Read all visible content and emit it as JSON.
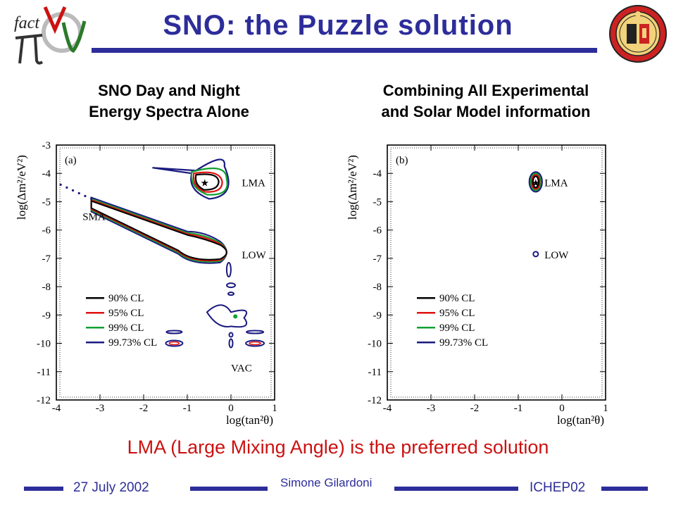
{
  "slide": {
    "title": "SNO: the Puzzle solution",
    "logo_left": {
      "icon": "factnunu-logo",
      "text": "fact"
    },
    "logo_right": {
      "icon": "university-geneva-seal"
    },
    "conclusion": "LMA (Large Mixing Angle) is the preferred solution",
    "footer": {
      "date": "27 July 2002",
      "author": "Simone Gilardoni",
      "conference": "ICHEP02"
    },
    "accent_color": "#2d2d9a",
    "conclusion_color": "#cc1111"
  },
  "chart_data": [
    {
      "type": "contour",
      "title_lines": [
        "SNO Day and Night",
        "Energy Spectra Alone"
      ],
      "panel_label": "(a)",
      "xlabel": "log(tan²θ)",
      "ylabel": "log(Δm²/eV²)",
      "xlim": [
        -4,
        1
      ],
      "ylim": [
        -12,
        -3
      ],
      "x_ticks": [
        "-4",
        "-3",
        "-2",
        "-1",
        "0",
        "1"
      ],
      "y_ticks": [
        "-3",
        "-4",
        "-5",
        "-6",
        "-7",
        "-8",
        "-9",
        "-10",
        "-11",
        "-12"
      ],
      "region_labels": [
        {
          "text": "LMA",
          "x": 0.25,
          "y": -4.3
        },
        {
          "text": "SMA",
          "x": -3.4,
          "y": -5.5
        },
        {
          "text": "LOW",
          "x": 0.25,
          "y": -6.85
        },
        {
          "text": "VAC",
          "x": 0.0,
          "y": -10.85
        }
      ],
      "best_fit": {
        "x": -0.6,
        "y": -4.3
      },
      "legend": [
        {
          "label": "90% CL",
          "color": "#000000"
        },
        {
          "label": "95% CL",
          "color": "#e01010"
        },
        {
          "label": "99% CL",
          "color": "#10a030"
        },
        {
          "label": "99.73% CL",
          "color": "#1a1a80"
        }
      ],
      "legend_position": "bottom-left",
      "allowed_regions": [
        "LMA",
        "SMA",
        "LOW",
        "VAC"
      ]
    },
    {
      "type": "contour",
      "title_lines": [
        "Combining All Experimental",
        "and Solar Model information"
      ],
      "panel_label": "(b)",
      "xlabel": "log(tan²θ)",
      "ylabel": "log(Δm²/eV²)",
      "xlim": [
        -4,
        1
      ],
      "ylim": [
        -12,
        -3
      ],
      "x_ticks": [
        "-4",
        "-3",
        "-2",
        "-1",
        "0",
        "1"
      ],
      "y_ticks": [
        "-4",
        "-5",
        "-6",
        "-7",
        "-8",
        "-9",
        "-10",
        "-11",
        "-12"
      ],
      "region_labels": [
        {
          "text": "LMA",
          "x": -0.4,
          "y": -4.3
        },
        {
          "text": "LOW",
          "x": -0.4,
          "y": -6.85
        }
      ],
      "best_fit": {
        "x": -0.6,
        "y": -4.3
      },
      "legend": [
        {
          "label": "90% CL",
          "color": "#000000"
        },
        {
          "label": "95% CL",
          "color": "#e01010"
        },
        {
          "label": "99% CL",
          "color": "#10a030"
        },
        {
          "label": "99.73% CL",
          "color": "#1a1a80"
        }
      ],
      "legend_position": "bottom-left",
      "allowed_regions": [
        "LMA",
        "LOW"
      ]
    }
  ]
}
